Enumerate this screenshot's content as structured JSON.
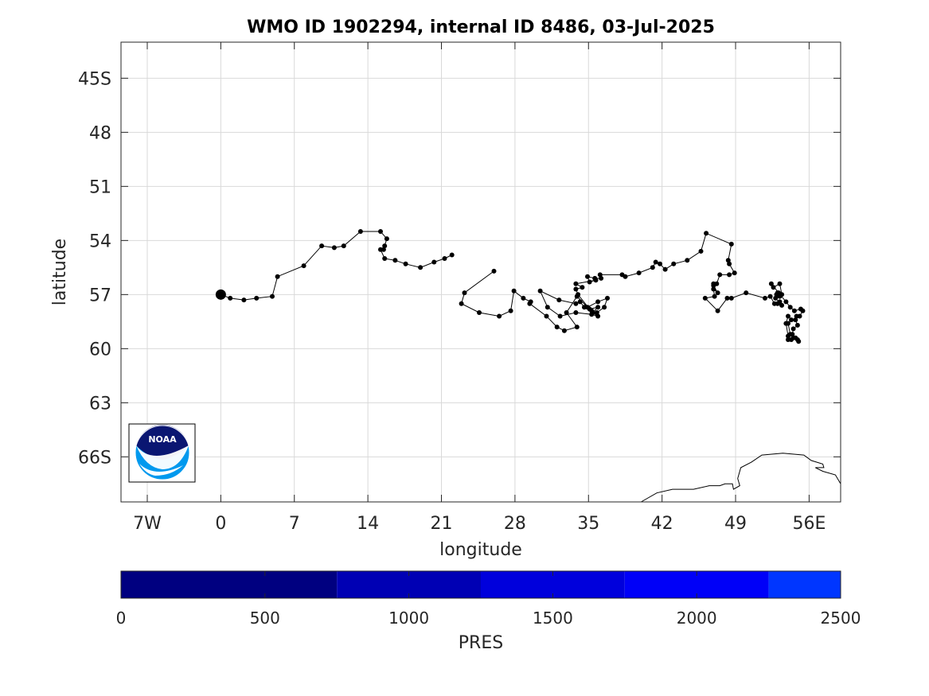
{
  "chart_data": {
    "type": "scatter",
    "title": "WMO ID 1902294, internal ID 8486, 03-Jul-2025",
    "xlabel": "longitude",
    "ylabel": "latitude",
    "xlim": [
      -9.5,
      59
    ],
    "ylim": [
      -68.5,
      -43
    ],
    "x_ticks": [
      -7,
      0,
      7,
      14,
      21,
      28,
      35,
      42,
      49,
      56
    ],
    "x_tick_labels": [
      "7W",
      "0",
      "7",
      "14",
      "21",
      "28",
      "35",
      "42",
      "49",
      "56E"
    ],
    "y_ticks": [
      -45,
      -48,
      -51,
      -54,
      -57,
      -60,
      -63,
      -66
    ],
    "y_tick_labels": [
      "45S",
      "48",
      "51",
      "54",
      "57",
      "60",
      "63",
      "66S"
    ],
    "grid": true,
    "start_position": [
      0.0,
      -57.0
    ],
    "track": [
      [
        0.0,
        -57.0
      ],
      [
        0.9,
        -57.2
      ],
      [
        2.2,
        -57.3
      ],
      [
        3.4,
        -57.2
      ],
      [
        4.9,
        -57.1
      ],
      [
        5.4,
        -56.0
      ],
      [
        7.9,
        -55.4
      ],
      [
        9.6,
        -54.3
      ],
      [
        10.8,
        -54.4
      ],
      [
        11.7,
        -54.3
      ],
      [
        13.3,
        -53.5
      ],
      [
        15.2,
        -53.5
      ],
      [
        15.8,
        -53.9
      ],
      [
        15.6,
        -54.3
      ],
      [
        15.5,
        -54.5
      ],
      [
        15.2,
        -54.5
      ],
      [
        15.6,
        -55.0
      ],
      [
        16.6,
        -55.1
      ],
      [
        17.6,
        -55.3
      ],
      [
        19.0,
        -55.5
      ],
      [
        20.3,
        -55.2
      ],
      [
        21.3,
        -55.0
      ],
      [
        22.0,
        -54.8
      ]
    ],
    "track2": [
      [
        26.0,
        -55.7
      ],
      [
        23.2,
        -56.9
      ],
      [
        22.9,
        -57.5
      ],
      [
        24.6,
        -58.0
      ],
      [
        26.5,
        -58.2
      ],
      [
        27.6,
        -57.9
      ],
      [
        27.9,
        -56.8
      ],
      [
        28.8,
        -57.2
      ],
      [
        29.5,
        -57.4
      ],
      [
        29.4,
        -57.5
      ],
      [
        31.0,
        -58.2
      ],
      [
        32.0,
        -58.8
      ],
      [
        32.7,
        -59.0
      ],
      [
        33.9,
        -58.8
      ],
      [
        32.9,
        -58.0
      ],
      [
        33.9,
        -57.1
      ],
      [
        34.9,
        -57.7
      ],
      [
        35.9,
        -57.4
      ],
      [
        36.8,
        -57.2
      ],
      [
        36.5,
        -57.7
      ],
      [
        35.8,
        -58.0
      ],
      [
        35.3,
        -57.9
      ],
      [
        34.6,
        -57.7
      ],
      [
        34.2,
        -57.4
      ],
      [
        33.8,
        -57.5
      ],
      [
        32.2,
        -57.3
      ],
      [
        30.4,
        -56.8
      ],
      [
        31.1,
        -57.7
      ],
      [
        32.3,
        -58.2
      ],
      [
        33.8,
        -58.0
      ],
      [
        35.3,
        -58.1
      ],
      [
        35.9,
        -58.2
      ],
      [
        35.4,
        -58.0
      ],
      [
        35.9,
        -57.7
      ],
      [
        35.1,
        -57.8
      ],
      [
        34.0,
        -57.0
      ],
      [
        33.8,
        -56.7
      ],
      [
        34.4,
        -56.6
      ],
      [
        33.8,
        -56.4
      ],
      [
        35.7,
        -56.2
      ],
      [
        35.1,
        -56.3
      ],
      [
        34.9,
        -56.0
      ],
      [
        35.6,
        -56.1
      ],
      [
        36.2,
        -56.1
      ],
      [
        36.1,
        -55.9
      ],
      [
        38.2,
        -55.9
      ],
      [
        38.5,
        -56.0
      ],
      [
        39.8,
        -55.8
      ],
      [
        41.1,
        -55.5
      ],
      [
        41.4,
        -55.2
      ],
      [
        41.8,
        -55.3
      ],
      [
        42.3,
        -55.6
      ],
      [
        43.1,
        -55.3
      ],
      [
        44.4,
        -55.1
      ],
      [
        45.7,
        -54.6
      ],
      [
        46.2,
        -53.6
      ],
      [
        48.6,
        -54.2
      ],
      [
        48.3,
        -55.1
      ],
      [
        48.4,
        -55.3
      ],
      [
        48.9,
        -55.8
      ],
      [
        48.4,
        -55.9
      ],
      [
        47.5,
        -55.9
      ],
      [
        47.2,
        -56.4
      ],
      [
        46.9,
        -56.4
      ],
      [
        46.9,
        -56.5
      ],
      [
        47.3,
        -56.9
      ],
      [
        46.9,
        -56.7
      ],
      [
        47.0,
        -57.1
      ],
      [
        46.1,
        -57.2
      ],
      [
        47.3,
        -57.9
      ],
      [
        48.2,
        -57.2
      ],
      [
        48.6,
        -57.2
      ],
      [
        50.0,
        -56.9
      ],
      [
        51.8,
        -57.2
      ],
      [
        52.3,
        -57.1
      ],
      [
        52.7,
        -57.5
      ],
      [
        53.2,
        -57.4
      ],
      [
        53.0,
        -57.5
      ],
      [
        53.4,
        -57.6
      ],
      [
        52.8,
        -57.2
      ],
      [
        52.9,
        -57.0
      ],
      [
        53.0,
        -56.9
      ],
      [
        53.2,
        -57.1
      ],
      [
        53.4,
        -57.0
      ],
      [
        53.2,
        -56.4
      ],
      [
        52.6,
        -56.6
      ],
      [
        52.4,
        -56.4
      ],
      [
        53.1,
        -56.9
      ],
      [
        53.8,
        -57.4
      ],
      [
        54.2,
        -57.7
      ],
      [
        54.6,
        -57.9
      ],
      [
        55.2,
        -57.8
      ],
      [
        55.4,
        -57.9
      ],
      [
        55.1,
        -58.2
      ],
      [
        54.8,
        -58.2
      ],
      [
        54.7,
        -58.4
      ],
      [
        54.9,
        -58.7
      ],
      [
        54.5,
        -58.9
      ],
      [
        54.4,
        -59.2
      ],
      [
        54.5,
        -59.4
      ],
      [
        54.9,
        -59.5
      ],
      [
        55.0,
        -59.6
      ],
      [
        54.7,
        -59.4
      ],
      [
        54.2,
        -59.2
      ],
      [
        54.0,
        -58.6
      ],
      [
        54.3,
        -58.4
      ],
      [
        54.0,
        -58.2
      ],
      [
        53.8,
        -58.6
      ],
      [
        54.0,
        -59.3
      ],
      [
        54.0,
        -59.5
      ],
      [
        54.3,
        -59.5
      ]
    ],
    "coastline": [
      [
        40.0,
        -68.5
      ],
      [
        41.5,
        -68.0
      ],
      [
        43.0,
        -67.8
      ],
      [
        45.0,
        -67.8
      ],
      [
        46.5,
        -67.6
      ],
      [
        47.5,
        -67.6
      ],
      [
        48.0,
        -67.5
      ],
      [
        48.7,
        -67.5
      ],
      [
        48.8,
        -67.8
      ],
      [
        49.4,
        -67.6
      ],
      [
        49.2,
        -67.2
      ],
      [
        49.5,
        -66.6
      ],
      [
        50.5,
        -66.3
      ],
      [
        51.5,
        -65.9
      ],
      [
        53.5,
        -65.8
      ],
      [
        55.5,
        -65.9
      ],
      [
        56.2,
        -66.2
      ],
      [
        57.3,
        -66.4
      ],
      [
        57.4,
        -66.6
      ],
      [
        56.6,
        -66.6
      ],
      [
        57.3,
        -66.8
      ],
      [
        58.5,
        -67.0
      ],
      [
        59.0,
        -67.5
      ]
    ],
    "colorbar": {
      "label": "PRES",
      "ticks": [
        0,
        500,
        1000,
        1500,
        2000,
        2500
      ],
      "tick_labels": [
        "0",
        "500",
        "1000",
        "1500",
        "2000",
        "2500"
      ],
      "segments": [
        {
          "from": 0,
          "to": 750,
          "color": "#000080"
        },
        {
          "from": 750,
          "to": 1250,
          "color": "#0000b4"
        },
        {
          "from": 1250,
          "to": 1750,
          "color": "#0000dc"
        },
        {
          "from": 1750,
          "to": 2250,
          "color": "#0000f8"
        },
        {
          "from": 2250,
          "to": 2500,
          "color": "#0036ff"
        }
      ]
    },
    "logo": {
      "text": "NOAA",
      "colors": {
        "dark": "#0a1672",
        "light": "#0099ee"
      }
    },
    "colors": {
      "track": "#000000",
      "grid": "#d9d9d9",
      "axis": "#262626"
    }
  }
}
